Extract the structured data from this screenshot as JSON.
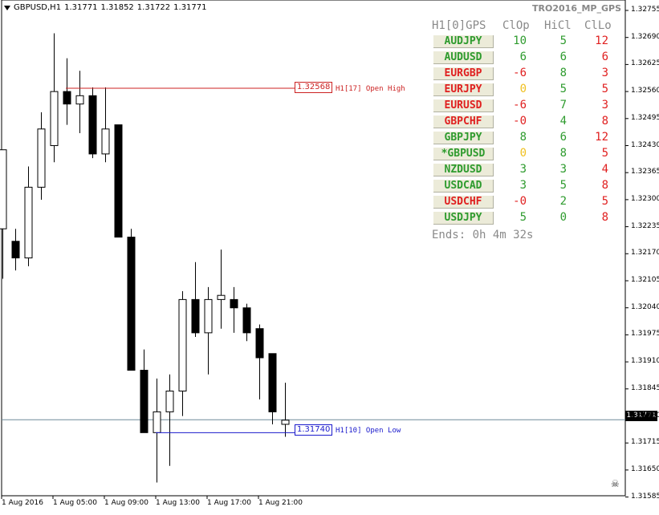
{
  "header": {
    "symbol": "GBPUSD,H1",
    "open": "1.31771",
    "high": "1.31852",
    "low": "1.31722",
    "close": "1.31771"
  },
  "indicator_name": "TRO2016_MP_GPS",
  "panel": {
    "col_title": "H1[0]GPS",
    "col_clop": "ClOp",
    "col_hicl": "HiCl",
    "col_cllo": "ClLo",
    "rows": [
      {
        "pair": "AUDJPY",
        "pair_color": "#2e9b2e",
        "clop": "10",
        "clop_color": "#2e9b2e",
        "hicl": "5",
        "hicl_color": "#2e9b2e",
        "cllo": "12",
        "cllo_color": "#e02020"
      },
      {
        "pair": "AUDUSD",
        "pair_color": "#2e9b2e",
        "clop": "6",
        "clop_color": "#2e9b2e",
        "hicl": "6",
        "hicl_color": "#2e9b2e",
        "cllo": "6",
        "cllo_color": "#e02020"
      },
      {
        "pair": "EURGBP",
        "pair_color": "#e02020",
        "clop": "-6",
        "clop_color": "#e02020",
        "hicl": "8",
        "hicl_color": "#2e9b2e",
        "cllo": "3",
        "cllo_color": "#e02020"
      },
      {
        "pair": "EURJPY",
        "pair_color": "#e02020",
        "clop": "0",
        "clop_color": "#f0c020",
        "hicl": "5",
        "hicl_color": "#2e9b2e",
        "cllo": "5",
        "cllo_color": "#e02020"
      },
      {
        "pair": "EURUSD",
        "pair_color": "#e02020",
        "clop": "-6",
        "clop_color": "#e02020",
        "hicl": "7",
        "hicl_color": "#2e9b2e",
        "cllo": "3",
        "cllo_color": "#e02020"
      },
      {
        "pair": "GBPCHF",
        "pair_color": "#e02020",
        "clop": "-0",
        "clop_color": "#e02020",
        "hicl": "4",
        "hicl_color": "#2e9b2e",
        "cllo": "8",
        "cllo_color": "#e02020"
      },
      {
        "pair": "GBPJPY",
        "pair_color": "#2e9b2e",
        "clop": "8",
        "clop_color": "#2e9b2e",
        "hicl": "6",
        "hicl_color": "#2e9b2e",
        "cllo": "12",
        "cllo_color": "#e02020"
      },
      {
        "pair": "*GBPUSD",
        "pair_color": "#2e9b2e",
        "clop": "0",
        "clop_color": "#f0c020",
        "hicl": "8",
        "hicl_color": "#2e9b2e",
        "cllo": "5",
        "cllo_color": "#e02020"
      },
      {
        "pair": "NZDUSD",
        "pair_color": "#2e9b2e",
        "clop": "3",
        "clop_color": "#2e9b2e",
        "hicl": "3",
        "hicl_color": "#2e9b2e",
        "cllo": "4",
        "cllo_color": "#e02020"
      },
      {
        "pair": "USDCAD",
        "pair_color": "#2e9b2e",
        "clop": "3",
        "clop_color": "#2e9b2e",
        "hicl": "5",
        "hicl_color": "#2e9b2e",
        "cllo": "8",
        "cllo_color": "#e02020"
      },
      {
        "pair": "USDCHF",
        "pair_color": "#e02020",
        "clop": "-0",
        "clop_color": "#e02020",
        "hicl": "2",
        "hicl_color": "#2e9b2e",
        "cllo": "5",
        "cllo_color": "#e02020"
      },
      {
        "pair": "USDJPY",
        "pair_color": "#2e9b2e",
        "clop": "5",
        "clop_color": "#2e9b2e",
        "hicl": "0",
        "hicl_color": "#2e9b2e",
        "cllo": "8",
        "cllo_color": "#e02020"
      }
    ],
    "ends_label": "Ends:",
    "ends_value": "0h 4m 32s"
  },
  "open_high": {
    "price": "1.32568",
    "label": "H1[17] Open High",
    "color": "#cc2222"
  },
  "open_low": {
    "price": "1.31740",
    "label": "H1[10] Open Low",
    "color": "#1a1acc"
  },
  "current_price": "1.31771",
  "price_axis": [
    "1.32755",
    "1.32690",
    "1.32625",
    "1.32560",
    "1.32495",
    "1.32430",
    "1.32365",
    "1.32300",
    "1.32235",
    "1.32170",
    "1.32105",
    "1.32040",
    "1.31975",
    "1.31910",
    "1.31845",
    "1.31780",
    "1.31715",
    "1.31650",
    "1.31585"
  ],
  "time_axis": [
    "1 Aug 2016",
    "1 Aug 05:00",
    "1 Aug 09:00",
    "1 Aug 13:00",
    "1 Aug 17:00",
    "1 Aug 21:00"
  ],
  "chart_data": {
    "type": "candlestick",
    "candles": [
      {
        "o": 1.3223,
        "h": 1.3242,
        "l": 1.3211,
        "c": 1.3242
      },
      {
        "o": 1.322,
        "h": 1.3223,
        "l": 1.3213,
        "c": 1.3216
      },
      {
        "o": 1.3216,
        "h": 1.3238,
        "l": 1.3214,
        "c": 1.3233
      },
      {
        "o": 1.3233,
        "h": 1.3251,
        "l": 1.323,
        "c": 1.3247
      },
      {
        "o": 1.3243,
        "h": 1.327,
        "l": 1.3239,
        "c": 1.3256
      },
      {
        "o": 1.3256,
        "h": 1.3264,
        "l": 1.3248,
        "c": 1.3253
      },
      {
        "o": 1.3253,
        "h": 1.3261,
        "l": 1.3246,
        "c": 1.3255
      },
      {
        "o": 1.3255,
        "h": 1.3257,
        "l": 1.324,
        "c": 1.3241
      },
      {
        "o": 1.3241,
        "h": 1.3257,
        "l": 1.3239,
        "c": 1.3247
      },
      {
        "o": 1.3248,
        "h": 1.3248,
        "l": 1.3221,
        "c": 1.3221
      },
      {
        "o": 1.3221,
        "h": 1.3223,
        "l": 1.3189,
        "c": 1.3189
      },
      {
        "o": 1.3189,
        "h": 1.3194,
        "l": 1.3174,
        "c": 1.3174
      },
      {
        "o": 1.3174,
        "h": 1.3187,
        "l": 1.3162,
        "c": 1.3179
      },
      {
        "o": 1.3179,
        "h": 1.3188,
        "l": 1.3166,
        "c": 1.3184
      },
      {
        "o": 1.3184,
        "h": 1.3208,
        "l": 1.3178,
        "c": 1.3206
      },
      {
        "o": 1.3206,
        "h": 1.3215,
        "l": 1.3197,
        "c": 1.3198
      },
      {
        "o": 1.3198,
        "h": 1.3209,
        "l": 1.3188,
        "c": 1.3206
      },
      {
        "o": 1.3206,
        "h": 1.3218,
        "l": 1.3199,
        "c": 1.3207
      },
      {
        "o": 1.3206,
        "h": 1.3209,
        "l": 1.3198,
        "c": 1.3204
      },
      {
        "o": 1.3204,
        "h": 1.3205,
        "l": 1.3196,
        "c": 1.3198
      },
      {
        "o": 1.3199,
        "h": 1.32,
        "l": 1.3182,
        "c": 1.3192
      },
      {
        "o": 1.3193,
        "h": 1.3193,
        "l": 1.3176,
        "c": 1.3179
      },
      {
        "o": 1.3176,
        "h": 1.3186,
        "l": 1.3173,
        "c": 1.3177
      }
    ]
  }
}
